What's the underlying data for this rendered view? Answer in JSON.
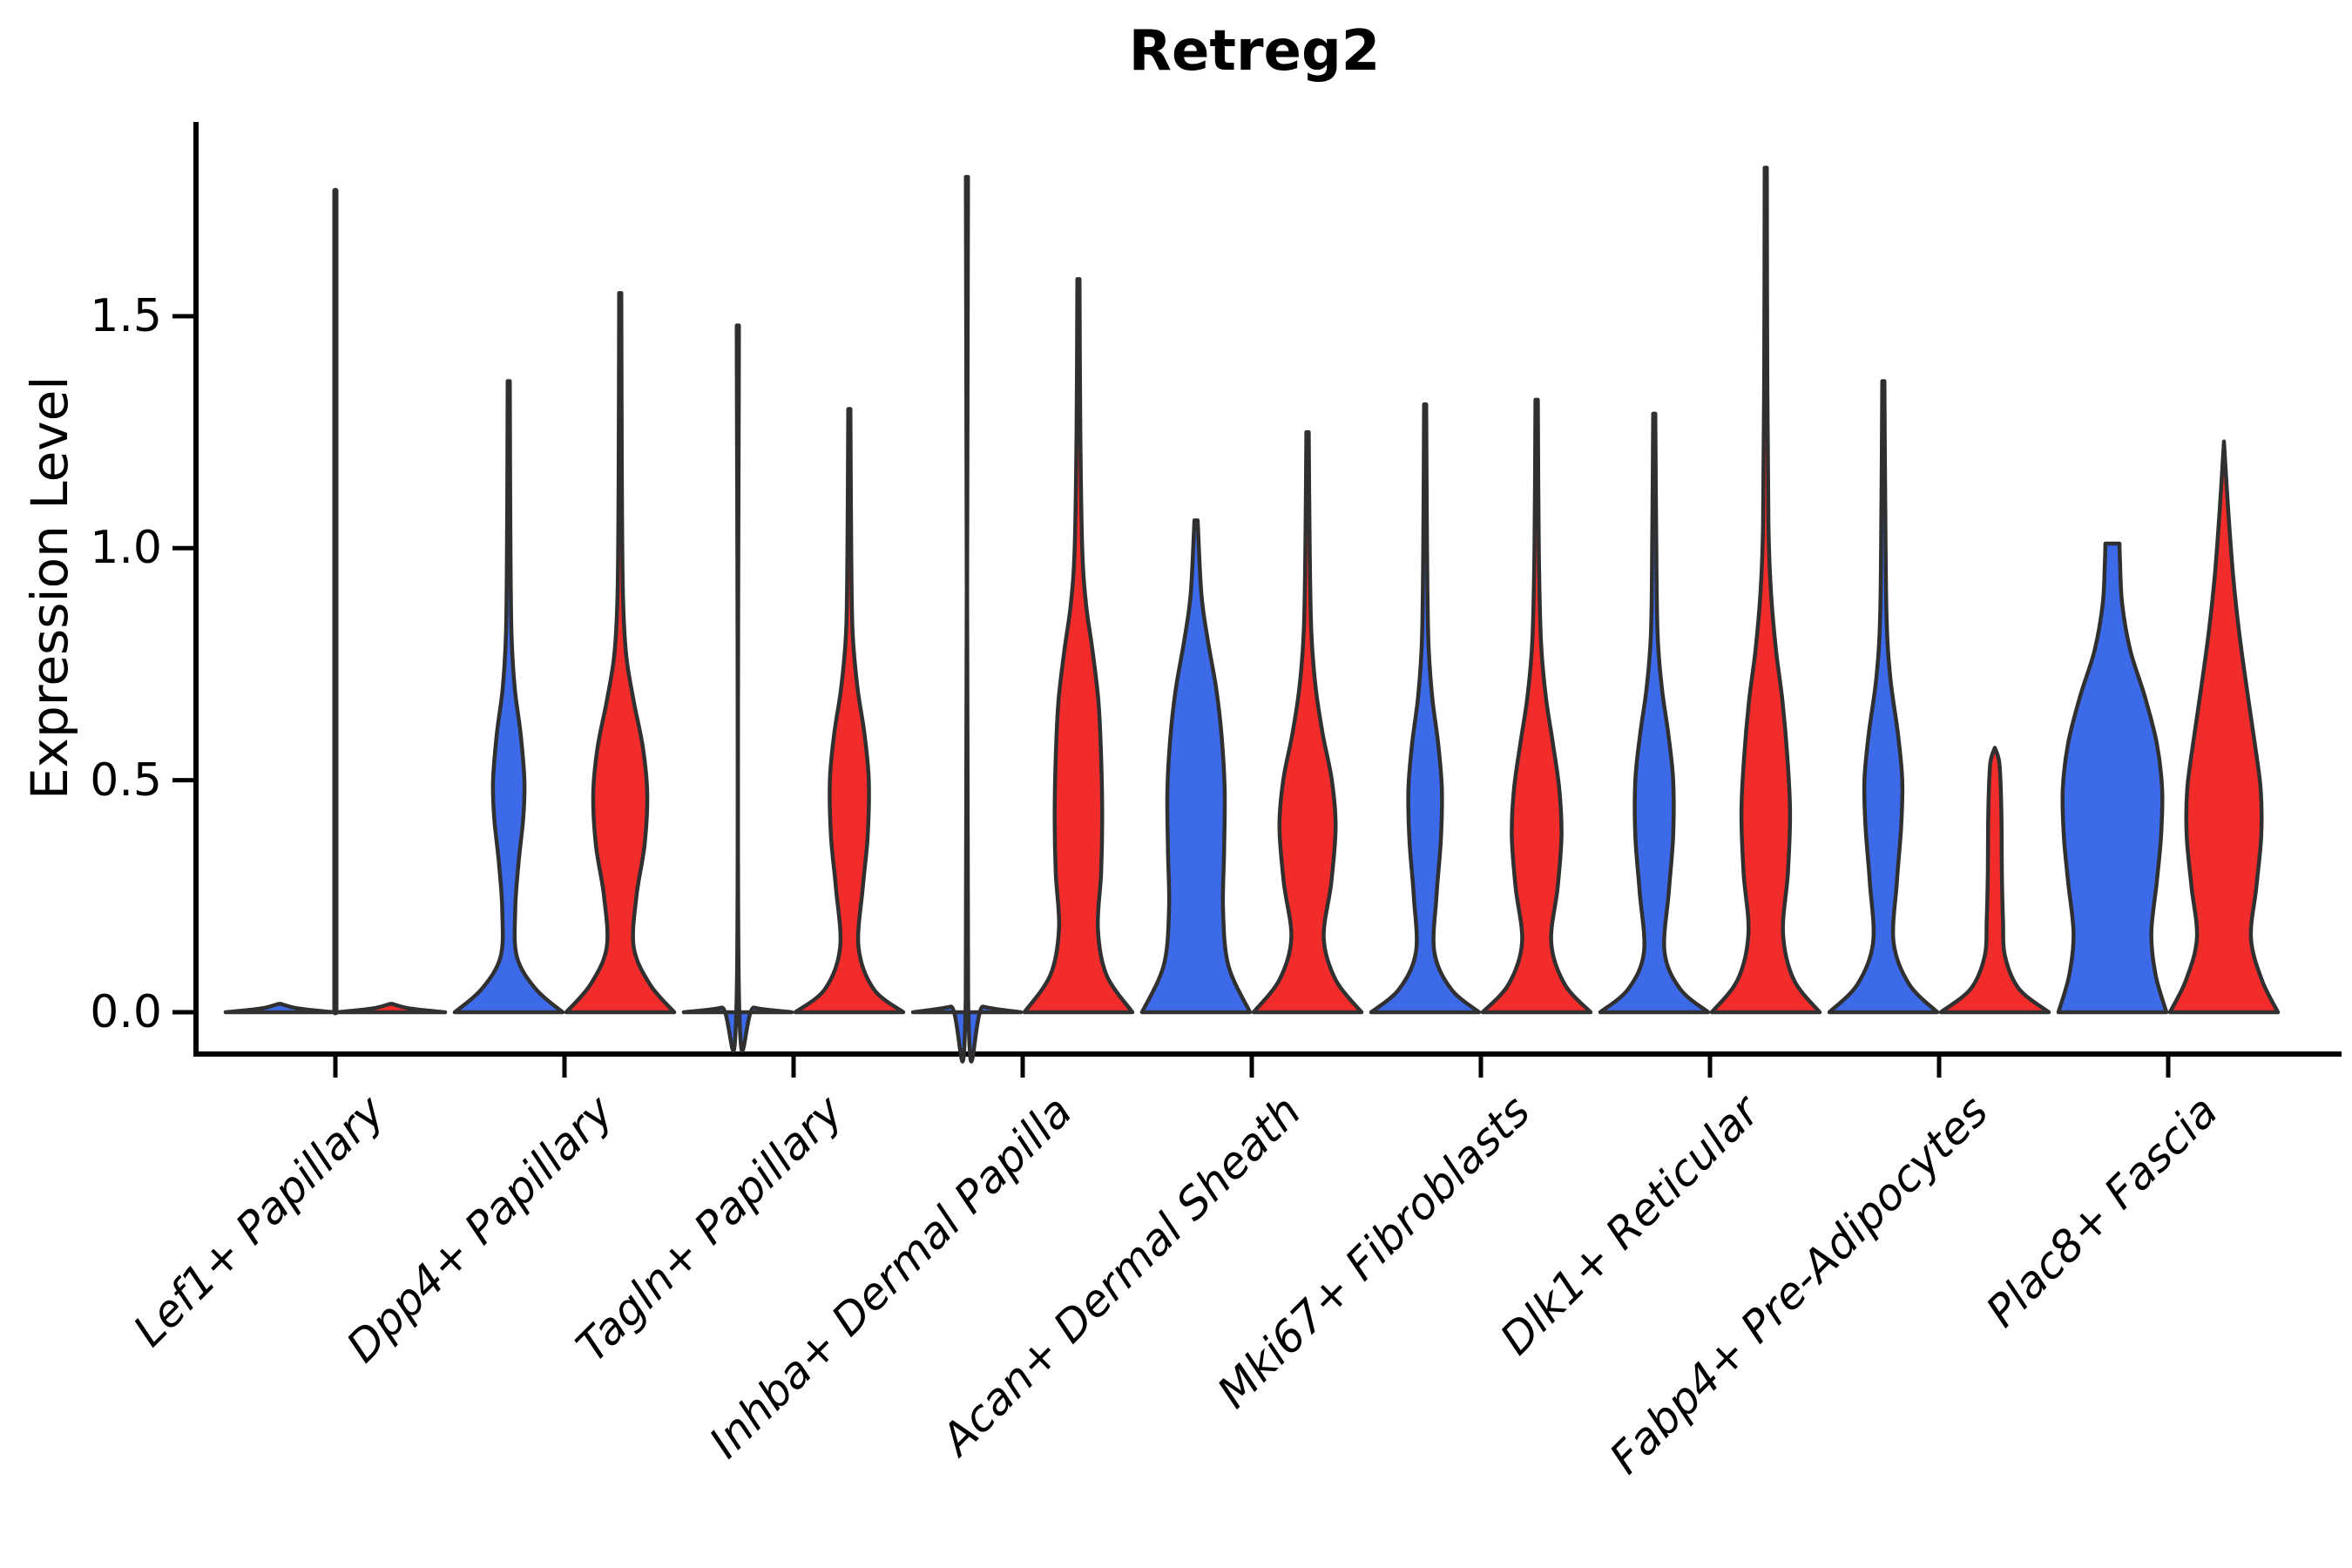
{
  "title": "Retreg2",
  "axes": {
    "ylabel": "Expression Level",
    "ytick_labels": [
      "0.0",
      "0.5",
      "1.0",
      "1.5"
    ],
    "ytick_values": [
      0.0,
      0.5,
      1.0,
      1.5
    ],
    "ylim": [
      0,
      1.88
    ]
  },
  "chart_data": {
    "type": "violin",
    "title": "Retreg2",
    "xlabel": "",
    "ylabel": "Expression Level",
    "ylim": [
      0,
      1.88
    ],
    "yticks": [
      0.0,
      0.5,
      1.0,
      1.5
    ],
    "grid": false,
    "legend": "none",
    "split_colors": {
      "left_fill": "#3D6AE8",
      "right_fill": "#F22B2B",
      "outline": "#303030",
      "axis": "#000000"
    },
    "categories": [
      "Lef1+ Papillary",
      "Dpp4+ Papillary",
      "Tagln+ Papillary",
      "Inhba+ Dermal Papilla",
      "Acan+ Dermal Sheath",
      "Mki67+ Fibroblasts",
      "Dlk1+ Reticular",
      "Fabp4+ Pre-Adipocytes",
      "Plac8+ Fascia"
    ],
    "violins": [
      {
        "category": "Lef1+ Papillary",
        "center_spike_max": 1.77,
        "left": {
          "max": 0.02,
          "profile": [
            [
              0,
              1
            ],
            [
              0.008,
              0.35
            ],
            [
              0.018,
              0.02
            ]
          ]
        },
        "right": {
          "max": 0.02,
          "profile": [
            [
              0,
              1
            ],
            [
              0.008,
              0.35
            ],
            [
              0.018,
              0.02
            ]
          ]
        }
      },
      {
        "category": "Dpp4+ Papillary",
        "center_spike_max": null,
        "left": {
          "max": 1.36,
          "profile": [
            [
              0,
              1
            ],
            [
              0.05,
              0.5
            ],
            [
              0.12,
              0.15
            ],
            [
              0.22,
              0.12
            ],
            [
              0.32,
              0.18
            ],
            [
              0.42,
              0.27
            ],
            [
              0.5,
              0.29
            ],
            [
              0.6,
              0.22
            ],
            [
              0.7,
              0.11
            ],
            [
              0.82,
              0.05
            ],
            [
              1.05,
              0.03
            ],
            [
              1.36,
              0.02
            ]
          ]
        },
        "right": {
          "max": 1.55,
          "profile": [
            [
              0,
              1
            ],
            [
              0.06,
              0.55
            ],
            [
              0.14,
              0.25
            ],
            [
              0.25,
              0.3
            ],
            [
              0.36,
              0.45
            ],
            [
              0.47,
              0.5
            ],
            [
              0.57,
              0.42
            ],
            [
              0.67,
              0.25
            ],
            [
              0.77,
              0.11
            ],
            [
              0.9,
              0.05
            ],
            [
              1.15,
              0.03
            ],
            [
              1.55,
              0.02
            ]
          ]
        }
      },
      {
        "category": "Tagln+ Papillary",
        "center_spike_max": null,
        "left": {
          "max": 1.48,
          "profile": [
            [
              0,
              1
            ],
            [
              0.01,
              0.3
            ],
            [
              0.03,
              0.022
            ],
            [
              1.48,
              0.02
            ]
          ]
        },
        "right": {
          "max": 1.3,
          "profile": [
            [
              0,
              1
            ],
            [
              0.05,
              0.45
            ],
            [
              0.14,
              0.17
            ],
            [
              0.27,
              0.25
            ],
            [
              0.38,
              0.34
            ],
            [
              0.5,
              0.36
            ],
            [
              0.6,
              0.28
            ],
            [
              0.7,
              0.15
            ],
            [
              0.82,
              0.06
            ],
            [
              1.0,
              0.035
            ],
            [
              1.3,
              0.02
            ]
          ]
        }
      },
      {
        "category": "Inhba+ Dermal Papilla",
        "center_spike_max": null,
        "left": {
          "max": 1.8,
          "profile": [
            [
              0,
              1
            ],
            [
              0.012,
              0.3
            ],
            [
              0.03,
              0.022
            ],
            [
              1.8,
              0.02
            ]
          ]
        },
        "right": {
          "max": 1.58,
          "profile": [
            [
              0,
              1
            ],
            [
              0.08,
              0.52
            ],
            [
              0.18,
              0.36
            ],
            [
              0.3,
              0.42
            ],
            [
              0.42,
              0.44
            ],
            [
              0.55,
              0.42
            ],
            [
              0.67,
              0.37
            ],
            [
              0.78,
              0.26
            ],
            [
              0.88,
              0.14
            ],
            [
              1.0,
              0.07
            ],
            [
              1.25,
              0.035
            ],
            [
              1.58,
              0.02
            ]
          ]
        }
      },
      {
        "category": "Acan+ Dermal Sheath",
        "center_spike_max": null,
        "left": {
          "max": 1.06,
          "profile": [
            [
              0,
              1
            ],
            [
              0.1,
              0.6
            ],
            [
              0.22,
              0.5
            ],
            [
              0.35,
              0.52
            ],
            [
              0.48,
              0.53
            ],
            [
              0.6,
              0.47
            ],
            [
              0.7,
              0.37
            ],
            [
              0.8,
              0.22
            ],
            [
              0.9,
              0.1
            ],
            [
              1.06,
              0.03
            ]
          ]
        },
        "right": {
          "max": 1.25,
          "profile": [
            [
              0,
              1
            ],
            [
              0.07,
              0.52
            ],
            [
              0.16,
              0.3
            ],
            [
              0.28,
              0.44
            ],
            [
              0.4,
              0.52
            ],
            [
              0.5,
              0.45
            ],
            [
              0.6,
              0.28
            ],
            [
              0.7,
              0.15
            ],
            [
              0.82,
              0.07
            ],
            [
              1.0,
              0.04
            ],
            [
              1.25,
              0.022
            ]
          ]
        }
      },
      {
        "category": "Mki67+ Fibroblasts",
        "center_spike_max": null,
        "left": {
          "max": 1.31,
          "profile": [
            [
              0,
              1
            ],
            [
              0.05,
              0.48
            ],
            [
              0.13,
              0.17
            ],
            [
              0.25,
              0.21
            ],
            [
              0.37,
              0.29
            ],
            [
              0.48,
              0.31
            ],
            [
              0.58,
              0.24
            ],
            [
              0.68,
              0.13
            ],
            [
              0.8,
              0.06
            ],
            [
              1.0,
              0.035
            ],
            [
              1.31,
              0.02
            ]
          ]
        },
        "right": {
          "max": 1.32,
          "profile": [
            [
              0,
              1
            ],
            [
              0.06,
              0.52
            ],
            [
              0.15,
              0.27
            ],
            [
              0.27,
              0.39
            ],
            [
              0.38,
              0.46
            ],
            [
              0.48,
              0.42
            ],
            [
              0.58,
              0.3
            ],
            [
              0.68,
              0.17
            ],
            [
              0.8,
              0.08
            ],
            [
              1.0,
              0.04
            ],
            [
              1.32,
              0.022
            ]
          ]
        }
      },
      {
        "category": "Dlk1+ Reticular",
        "center_spike_max": null,
        "left": {
          "max": 1.29,
          "profile": [
            [
              0,
              1
            ],
            [
              0.05,
              0.48
            ],
            [
              0.13,
              0.19
            ],
            [
              0.26,
              0.27
            ],
            [
              0.38,
              0.35
            ],
            [
              0.5,
              0.35
            ],
            [
              0.6,
              0.26
            ],
            [
              0.7,
              0.14
            ],
            [
              0.82,
              0.06
            ],
            [
              1.05,
              0.035
            ],
            [
              1.29,
              0.02
            ]
          ]
        },
        "right": {
          "max": 1.82,
          "profile": [
            [
              0,
              1
            ],
            [
              0.07,
              0.52
            ],
            [
              0.17,
              0.32
            ],
            [
              0.3,
              0.41
            ],
            [
              0.43,
              0.45
            ],
            [
              0.55,
              0.4
            ],
            [
              0.67,
              0.31
            ],
            [
              0.78,
              0.19
            ],
            [
              0.9,
              0.1
            ],
            [
              1.05,
              0.05
            ],
            [
              1.4,
              0.028
            ],
            [
              1.82,
              0.02
            ]
          ]
        }
      },
      {
        "category": "Fabp4+ Pre-Adipocytes",
        "center_spike_max": null,
        "left": {
          "max": 1.36,
          "profile": [
            [
              0,
              1
            ],
            [
              0.06,
              0.48
            ],
            [
              0.15,
              0.19
            ],
            [
              0.28,
              0.25
            ],
            [
              0.4,
              0.33
            ],
            [
              0.5,
              0.35
            ],
            [
              0.6,
              0.27
            ],
            [
              0.72,
              0.13
            ],
            [
              0.85,
              0.06
            ],
            [
              1.1,
              0.035
            ],
            [
              1.36,
              0.02
            ]
          ]
        },
        "right": {
          "max": 0.57,
          "profile": [
            [
              0,
              1
            ],
            [
              0.05,
              0.45
            ],
            [
              0.12,
              0.19
            ],
            [
              0.2,
              0.15
            ],
            [
              0.3,
              0.13
            ],
            [
              0.4,
              0.125
            ],
            [
              0.48,
              0.11
            ],
            [
              0.54,
              0.08
            ],
            [
              0.57,
              0.0
            ]
          ]
        }
      },
      {
        "category": "Plac8+ Fascia",
        "center_spike_max": null,
        "left": {
          "max": 1.01,
          "profile": [
            [
              0,
              1
            ],
            [
              0.08,
              0.8
            ],
            [
              0.17,
              0.72
            ],
            [
              0.28,
              0.82
            ],
            [
              0.38,
              0.9
            ],
            [
              0.48,
              0.92
            ],
            [
              0.58,
              0.82
            ],
            [
              0.68,
              0.6
            ],
            [
              0.78,
              0.33
            ],
            [
              0.88,
              0.18
            ],
            [
              0.97,
              0.14
            ],
            [
              1.01,
              0.13
            ]
          ]
        },
        "right": {
          "max": 1.23,
          "profile": [
            [
              0,
              1
            ],
            [
              0.07,
              0.7
            ],
            [
              0.16,
              0.5
            ],
            [
              0.27,
              0.6
            ],
            [
              0.38,
              0.69
            ],
            [
              0.48,
              0.68
            ],
            [
              0.58,
              0.57
            ],
            [
              0.7,
              0.42
            ],
            [
              0.82,
              0.28
            ],
            [
              0.94,
              0.17
            ],
            [
              1.08,
              0.08
            ],
            [
              1.23,
              0.0
            ]
          ]
        }
      }
    ]
  }
}
